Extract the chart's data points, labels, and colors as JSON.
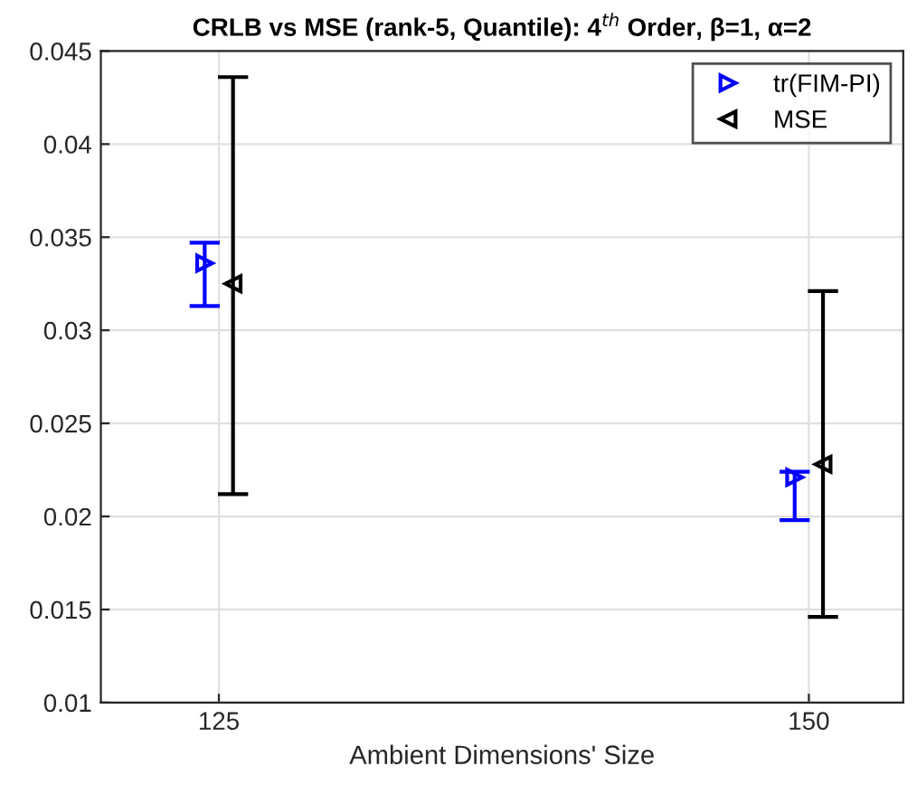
{
  "chart_data": {
    "type": "scatter",
    "title": "CRLB vs MSE (rank-5, Quantile): 4$^{th}$ Order, β=1, α=2",
    "xlabel": "Ambient Dimensions' Size",
    "xlim": [
      120,
      154
    ],
    "xticks": [
      125,
      150
    ],
    "ylim": [
      0.01,
      0.045
    ],
    "yticks": [
      0.01,
      0.015,
      0.02,
      0.025,
      0.03,
      0.035,
      0.04,
      0.045
    ],
    "grid": true,
    "legend": "top right",
    "marker": "triangle",
    "series": [
      {
        "name": "tr(FIM-PI)",
        "color": "#0000ff",
        "x": [
          124.4,
          149.4
        ],
        "values": [
          0.0336,
          0.0221
        ],
        "errors": [
          [
            0.0313,
            0.0347
          ],
          [
            0.0198,
            0.0224
          ]
        ]
      },
      {
        "name": "MSE",
        "color": "#000000",
        "x": [
          125.6,
          150.6
        ],
        "values": [
          0.0325,
          0.0228
        ],
        "errors": [
          [
            0.0212,
            0.0436
          ],
          [
            0.0146,
            0.0321
          ]
        ]
      }
    ]
  }
}
